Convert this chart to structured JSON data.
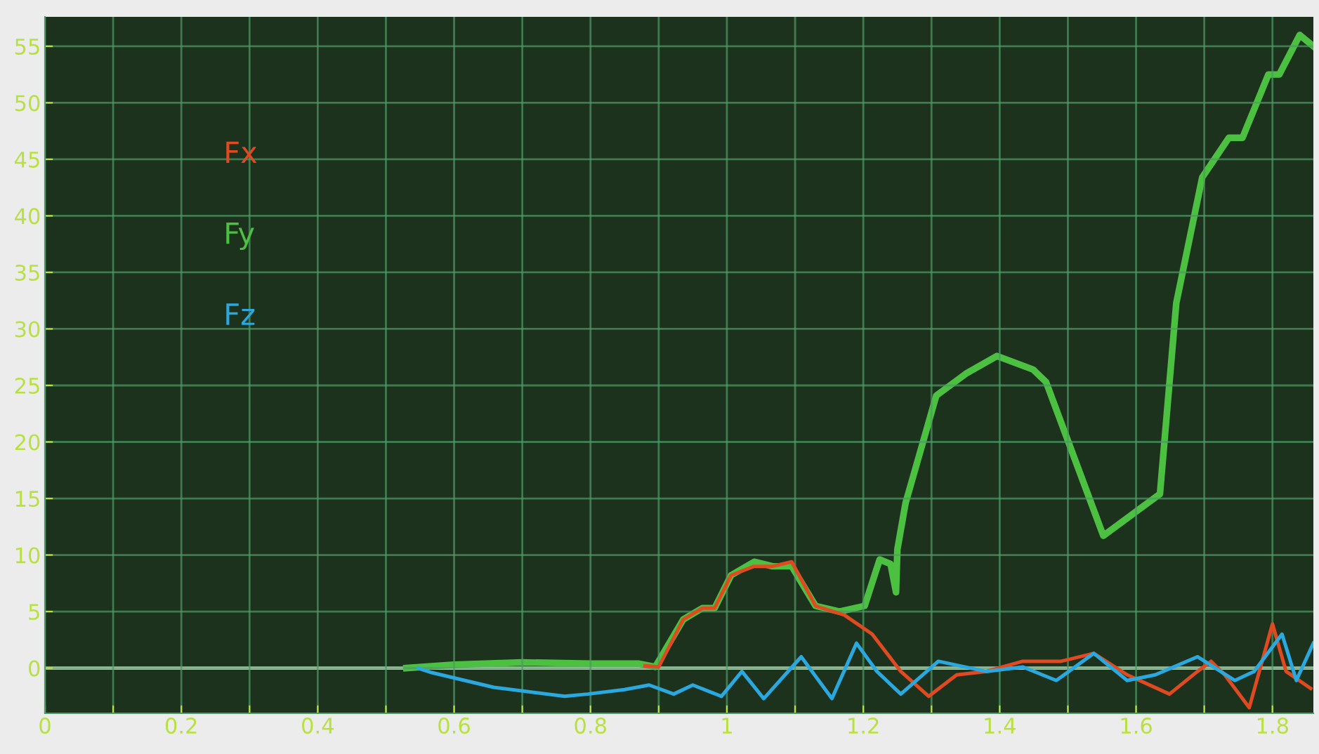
{
  "chart_data": {
    "type": "line",
    "xlim": [
      0,
      1.86
    ],
    "ylim": [
      -4,
      57.6
    ],
    "xticks": [
      0,
      {
        "value": 0.1,
        "label": null
      },
      0.2,
      {
        "value": 0.3,
        "label": null
      },
      0.4,
      {
        "value": 0.5,
        "label": null
      },
      0.6,
      {
        "value": 0.7,
        "label": null
      },
      0.8,
      {
        "value": 0.9,
        "label": null
      },
      1,
      {
        "value": 1.1,
        "label": null
      },
      1.2,
      {
        "value": 1.3,
        "label": null
      },
      1.4,
      {
        "value": 1.5,
        "label": null
      },
      1.6,
      {
        "value": 1.7,
        "label": null
      },
      1.8
    ],
    "yticks": [
      0,
      5,
      10,
      15,
      20,
      25,
      30,
      35,
      40,
      45,
      50,
      55
    ],
    "grid": true,
    "legend": "top left",
    "line_style": "solid",
    "marker": "none",
    "ref_lines": [
      {
        "axis": "y",
        "value": 0,
        "color": "#e8e8d8"
      }
    ],
    "series": [
      {
        "name": "Fx",
        "color": "#e04a20",
        "x": [
          0.88,
          0.9,
          0.936,
          0.964,
          0.982,
          1.006,
          1.04,
          1.067,
          1.095,
          1.13,
          1.172,
          1.213,
          1.255,
          1.296,
          1.337,
          1.38,
          1.434,
          1.49,
          1.538,
          1.587,
          1.649,
          1.69,
          1.71,
          1.73,
          1.766,
          1.8,
          1.82,
          1.856
        ],
        "values": [
          0.2,
          0.1,
          4.3,
          5.3,
          5.3,
          8.2,
          9.0,
          9.0,
          9.4,
          5.5,
          4.7,
          3.0,
          -0.3,
          -2.5,
          -0.6,
          -0.3,
          0.6,
          0.6,
          1.3,
          -0.6,
          -2.3,
          -0.3,
          0.6,
          -0.6,
          -3.5,
          3.9,
          -0.3,
          -1.8
        ]
      },
      {
        "name": "Fy",
        "color": "#4cc040",
        "x": [
          0.53,
          0.6,
          0.7,
          0.8,
          0.87,
          0.895,
          0.936,
          0.964,
          0.982,
          1.006,
          1.04,
          1.067,
          1.095,
          1.13,
          1.165,
          1.202,
          1.224,
          1.24,
          1.248,
          1.25,
          1.262,
          1.307,
          1.352,
          1.396,
          1.449,
          1.468,
          1.552,
          1.635,
          1.659,
          1.697,
          1.736,
          1.756,
          1.794,
          1.81,
          1.84,
          1.86
        ],
        "values": [
          0,
          0.3,
          0.5,
          0.4,
          0.4,
          0.1,
          4.3,
          5.3,
          5.3,
          8.2,
          9.4,
          9.0,
          9.0,
          5.5,
          5.0,
          5.5,
          9.6,
          9.2,
          6.7,
          10.5,
          14.6,
          24.1,
          26.1,
          27.6,
          26.4,
          25.3,
          11.7,
          15.4,
          32.3,
          43.4,
          46.9,
          46.9,
          52.5,
          52.5,
          56.0,
          55
        ]
      },
      {
        "name": "Fz",
        "color": "#2aa8e0",
        "x": [
          0.547,
          0.567,
          0.658,
          0.762,
          0.796,
          0.85,
          0.886,
          0.922,
          0.95,
          0.992,
          1.022,
          1.054,
          1.109,
          1.154,
          1.19,
          1.22,
          1.255,
          1.31,
          1.38,
          1.434,
          1.483,
          1.538,
          1.587,
          1.628,
          1.69,
          1.745,
          1.773,
          1.814,
          1.835,
          1.86
        ],
        "values": [
          0,
          -0.4,
          -1.7,
          -2.5,
          -2.3,
          -1.9,
          -1.5,
          -2.3,
          -1.5,
          -2.5,
          -0.3,
          -2.7,
          1.0,
          -2.7,
          2.2,
          -0.3,
          -2.3,
          0.6,
          -0.3,
          0.1,
          -1.1,
          1.3,
          -1.1,
          -0.6,
          1.0,
          -1.1,
          -0.3,
          3.0,
          -1.1,
          2.2
        ]
      }
    ]
  }
}
